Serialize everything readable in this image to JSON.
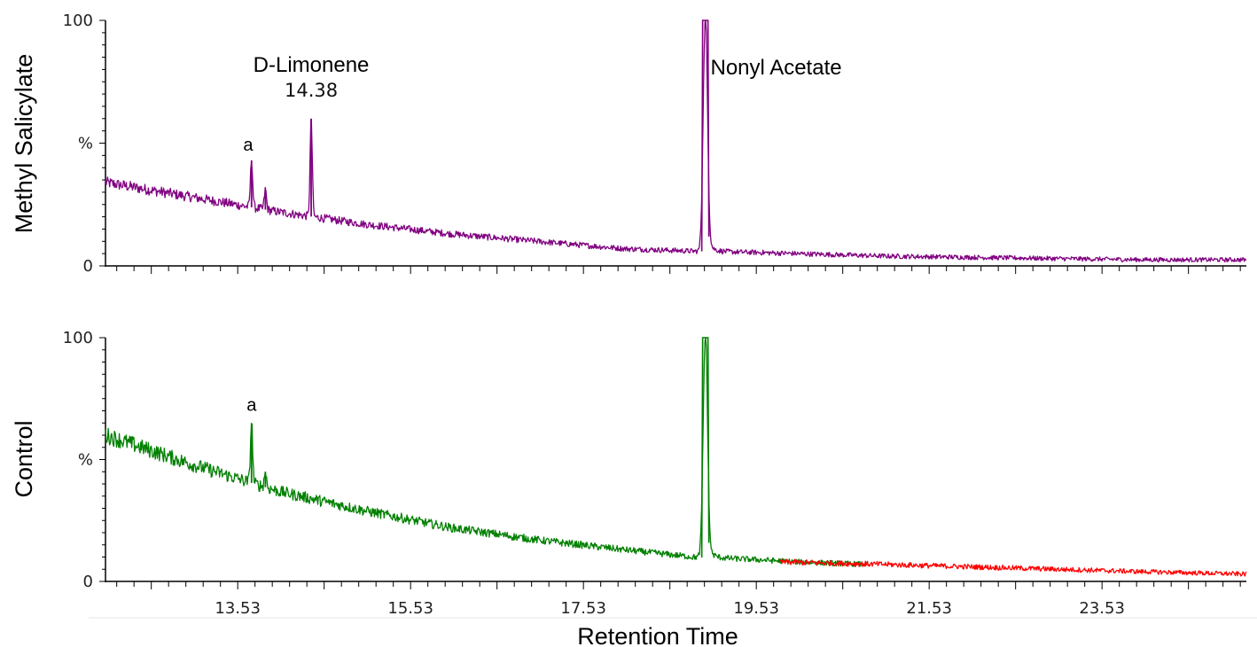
{
  "chart_data": [
    {
      "type": "line",
      "ylabel": "Methyl Salicylate",
      "y_ticks": [
        "100",
        "%",
        "0"
      ],
      "ylim": [
        0,
        100
      ],
      "xlim": [
        12.0,
        25.2
      ],
      "grid": false,
      "annotations": [
        {
          "text": "D-Limonene",
          "x": 14.38,
          "y": 79
        },
        {
          "text": "14.38",
          "x": 14.38,
          "y": 69
        },
        {
          "text": "a",
          "x": 13.65,
          "y": 47
        },
        {
          "text": "Nonyl Acetate",
          "x": 19.0,
          "y": 78
        }
      ],
      "series": [
        {
          "color": "#800080",
          "baseline": [
            [
              12.0,
              34
            ],
            [
              13.0,
              28
            ],
            [
              14.0,
              22
            ],
            [
              15.0,
              17
            ],
            [
              16.0,
              13
            ],
            [
              17.0,
              10
            ],
            [
              18.0,
              7
            ],
            [
              18.8,
              6
            ],
            [
              19.5,
              5.5
            ],
            [
              20.0,
              5
            ],
            [
              21.0,
              4
            ],
            [
              22.0,
              3.5
            ],
            [
              23.0,
              3
            ],
            [
              24.0,
              2.5
            ],
            [
              25.2,
              2.5
            ]
          ],
          "peaks": [
            {
              "x": 13.69,
              "y": 43
            },
            {
              "x": 13.85,
              "y": 31
            },
            {
              "x": 14.38,
              "y": 60
            },
            {
              "x": 18.94,
              "y": 100
            }
          ]
        }
      ]
    },
    {
      "type": "line",
      "ylabel": "Control",
      "x_ticks": [
        13.53,
        15.53,
        17.53,
        19.53,
        21.53,
        23.53
      ],
      "x_tick_labels": [
        "13.53",
        "15.53",
        "17.53",
        "19.53",
        "21.53",
        "23.53"
      ],
      "xlabel": "Retention Time",
      "y_ticks": [
        "100",
        "%",
        "0"
      ],
      "ylim": [
        0,
        100
      ],
      "xlim": [
        12.0,
        25.2
      ],
      "grid": false,
      "annotations": [
        {
          "text": "a",
          "x": 13.69,
          "y": 70
        }
      ],
      "series": [
        {
          "color": "#008000",
          "baseline": [
            [
              12.0,
              60
            ],
            [
              13.0,
              48
            ],
            [
              14.0,
              37
            ],
            [
              15.0,
              29
            ],
            [
              16.0,
              22
            ],
            [
              17.0,
              17
            ],
            [
              18.0,
              13
            ],
            [
              18.8,
              10
            ],
            [
              19.5,
              9
            ],
            [
              20.0,
              8
            ],
            [
              20.8,
              7
            ]
          ],
          "peaks": [
            {
              "x": 13.69,
              "y": 65
            },
            {
              "x": 13.85,
              "y": 45
            },
            {
              "x": 18.94,
              "y": 100
            }
          ]
        },
        {
          "color": "#ff0000",
          "baseline": [
            [
              19.8,
              8
            ],
            [
              21.0,
              7
            ],
            [
              22.0,
              6
            ],
            [
              23.0,
              5
            ],
            [
              24.0,
              4
            ],
            [
              25.2,
              3
            ]
          ],
          "peaks": []
        }
      ]
    }
  ]
}
